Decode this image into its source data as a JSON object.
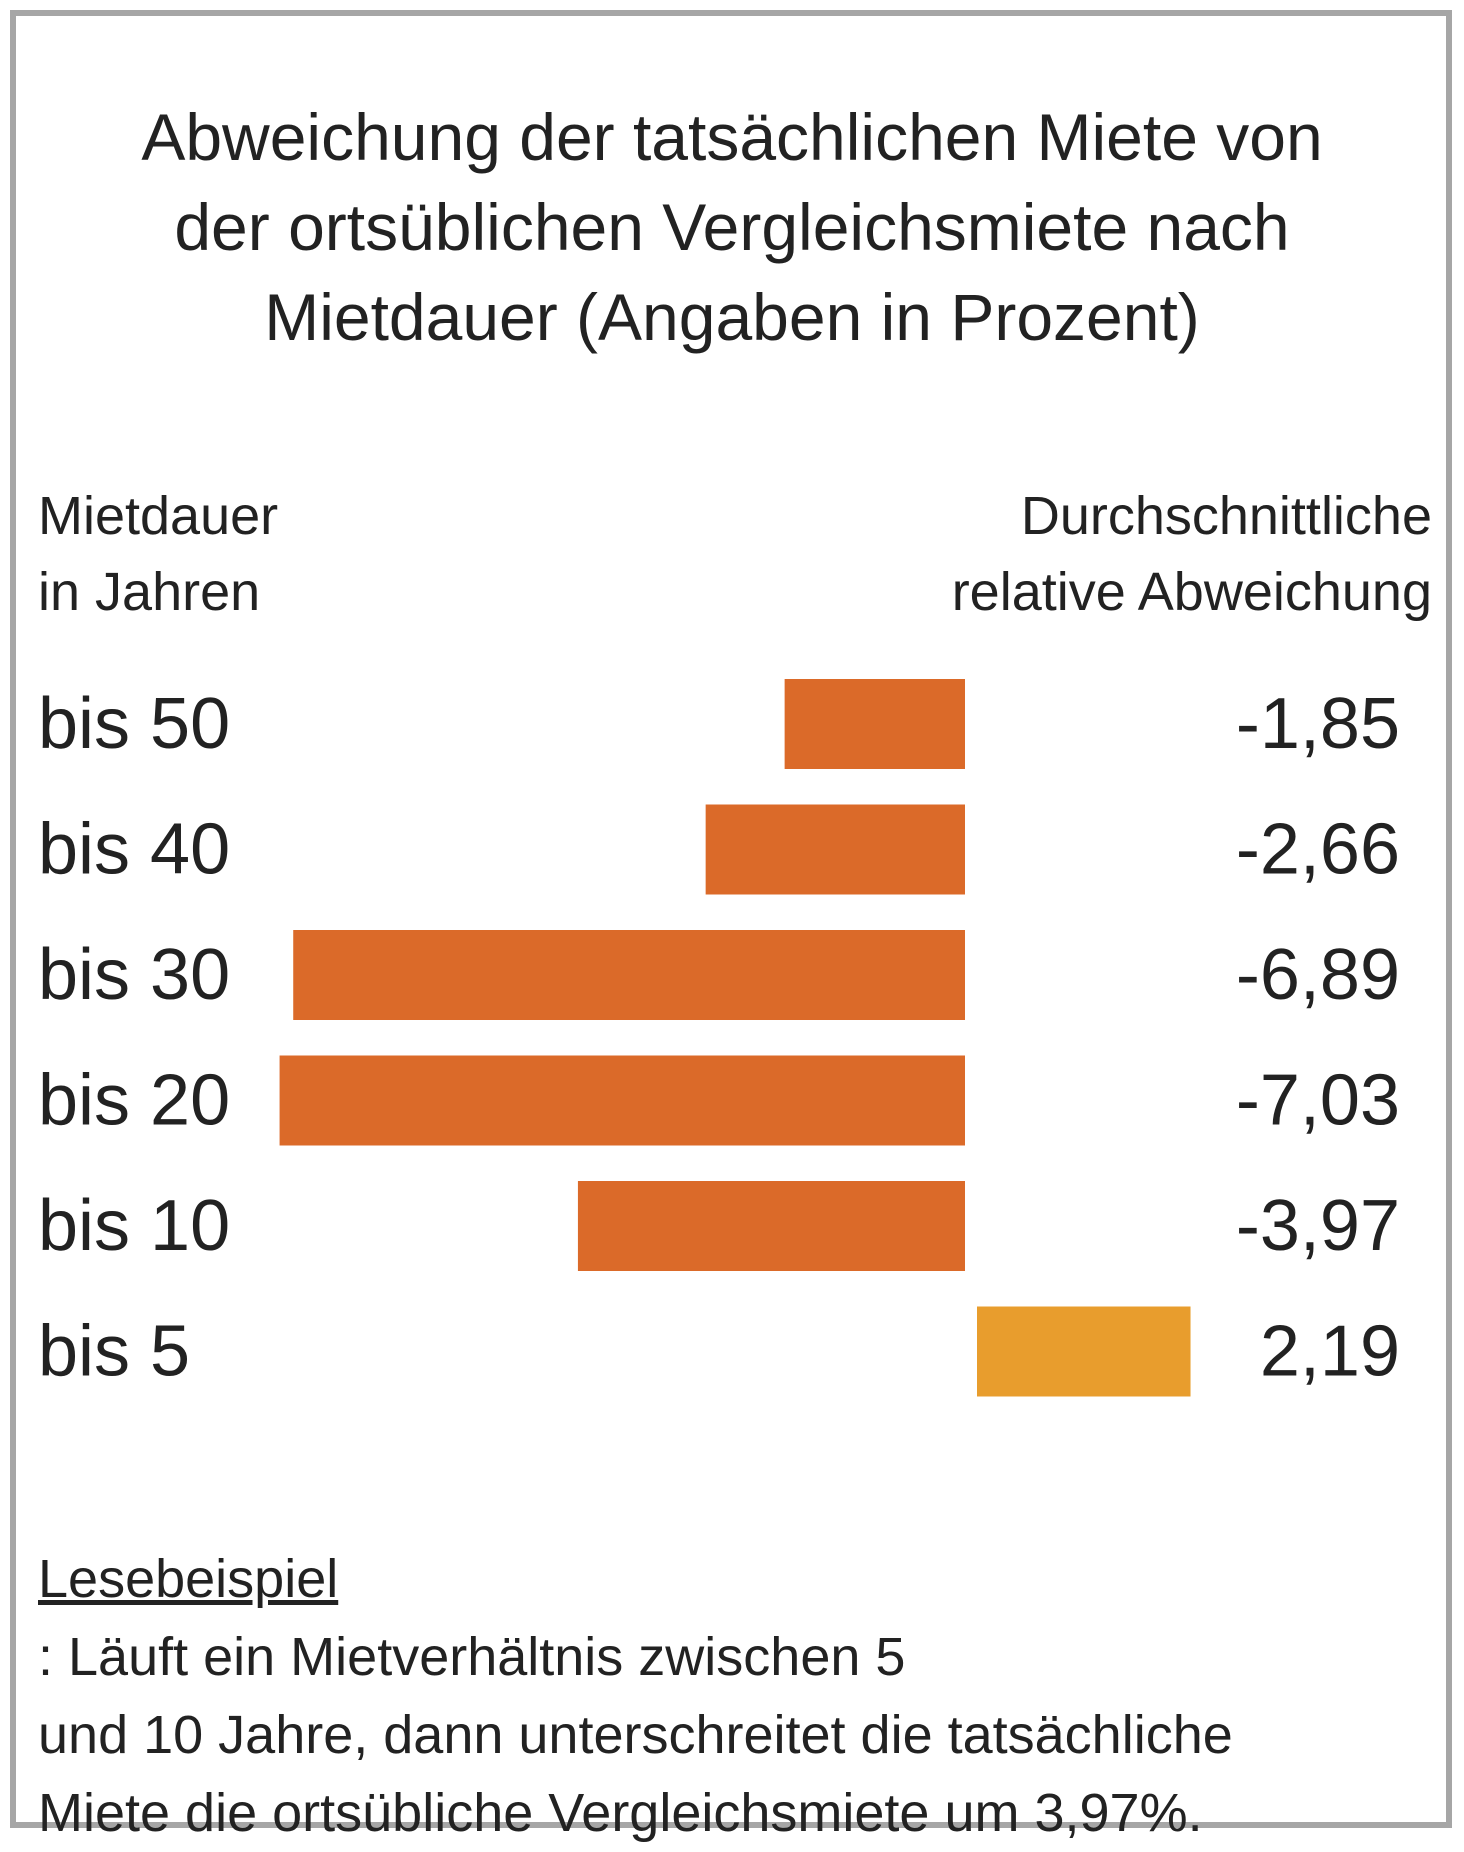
{
  "chart_data": {
    "type": "bar",
    "orientation": "horizontal",
    "title_lines": [
      "Abweichung der tatsächlichen Miete von",
      "der ortsüblichen Vergleichsmiete nach",
      "Mietdauer (Angaben in Prozent)"
    ],
    "ylabel_lines": [
      "Mietdauer",
      "in Jahren"
    ],
    "value_header_lines": [
      "Durchschnittliche",
      "relative Abweichung"
    ],
    "categories": [
      "bis 50",
      "bis 40",
      "bis 30",
      "bis 20",
      "bis 10",
      "bis 5"
    ],
    "values": [
      -1.85,
      -2.66,
      -6.89,
      -7.03,
      -3.97,
      2.19
    ],
    "value_labels": [
      "-1,85",
      "-2,66",
      "-6,89",
      "-7,03",
      "-3,97",
      "2,19"
    ],
    "xlim": [
      -7.03,
      2.19
    ],
    "grid": false,
    "legend": "none"
  },
  "colors": {
    "negative": "#db6a29",
    "positive": "#e89d2d",
    "border": "#a6a6a6",
    "text": "#222222"
  },
  "note": {
    "label": "Lesebeispiel",
    "line1": ": Läuft ein Mietverhältnis zwischen 5",
    "line2": "und 10 Jahre, dann unterschreitet die tatsächliche",
    "line3": "Miete die ortsübliche Vergleichsmiete um 3,97%."
  }
}
